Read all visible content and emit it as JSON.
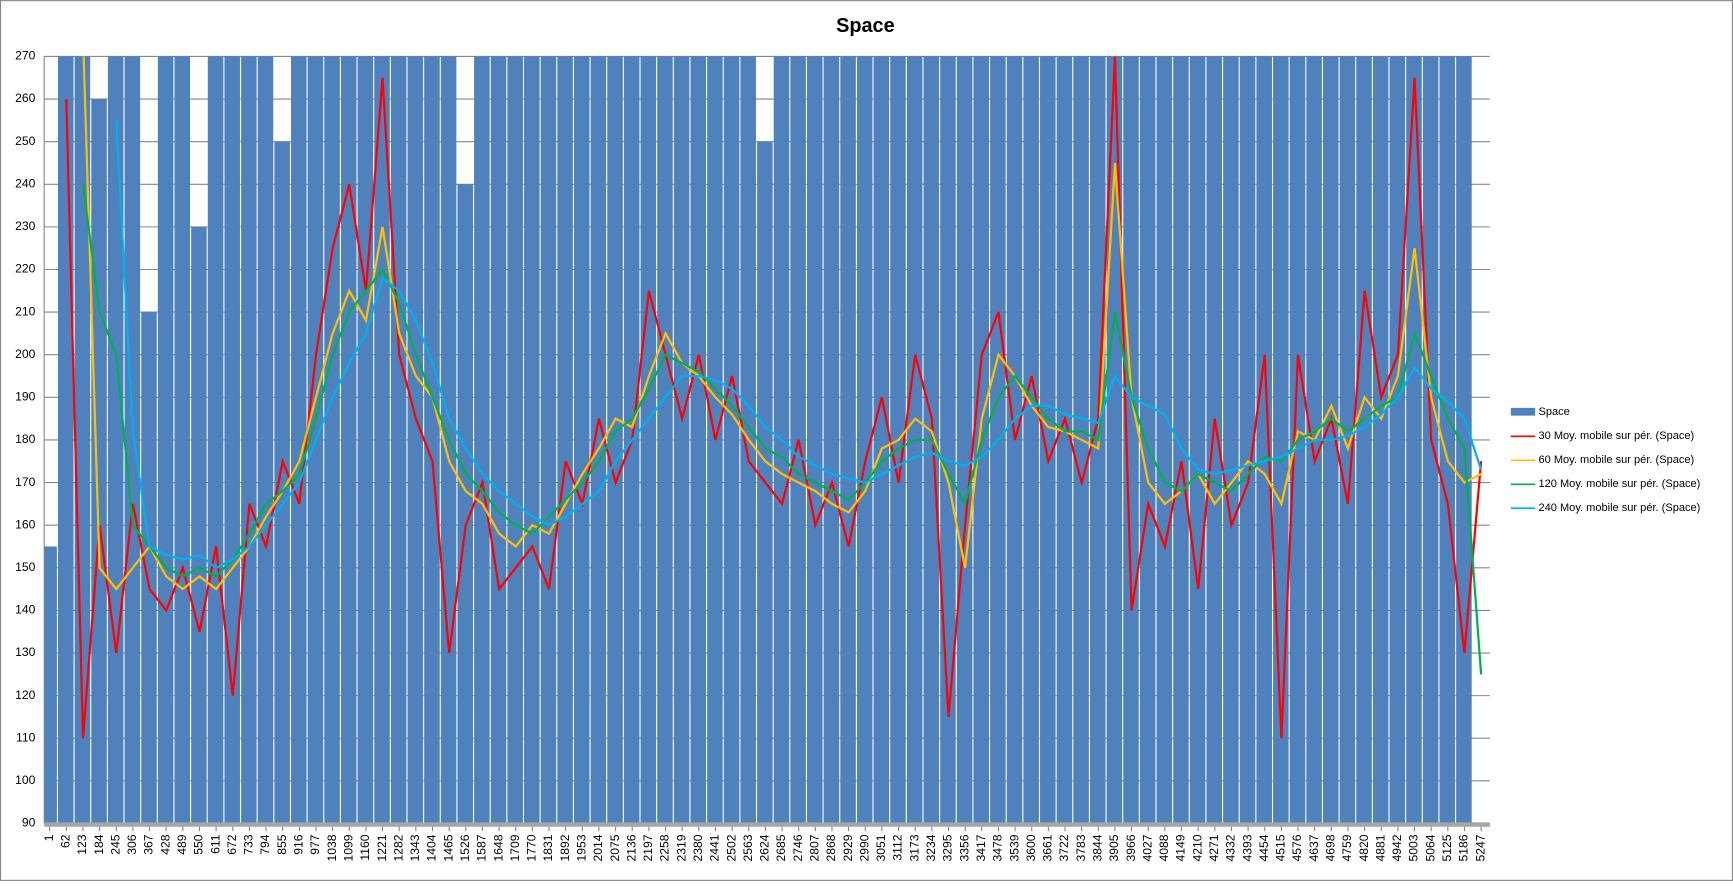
{
  "chart_data": {
    "type": "bar-line",
    "title": "Space",
    "x": [
      1,
      62,
      123,
      184,
      245,
      306,
      367,
      428,
      489,
      550,
      611,
      672,
      733,
      794,
      855,
      916,
      977,
      1038,
      1099,
      1160,
      1221,
      1282,
      1343,
      1404,
      1465,
      1526,
      1587,
      1648,
      1709,
      1770,
      1831,
      1892,
      1953,
      2014,
      2075,
      2136,
      2197,
      2258,
      2319,
      2380,
      2441,
      2502,
      2563,
      2624,
      2685,
      2746,
      2807,
      2868,
      2929,
      2990,
      3051,
      3112,
      3173,
      3234,
      3295,
      3356,
      3417,
      3478,
      3539,
      3600,
      3661,
      3722,
      3783,
      3844,
      3905,
      3966,
      4027,
      4088,
      4149,
      4210,
      4271,
      4332,
      4393,
      4454,
      4515,
      4576,
      4637,
      4698,
      4759,
      4820,
      4881,
      4942,
      5003,
      5064,
      5125,
      5186,
      5247
    ],
    "xlim": [
      -19,
      5279
    ],
    "xticks": [
      1,
      62,
      123,
      184,
      245,
      306,
      367,
      428,
      489,
      550,
      611,
      672,
      733,
      794,
      855,
      916,
      977,
      1038,
      1099,
      1160,
      1221,
      1282,
      1343,
      1404,
      1465,
      1526,
      1587,
      1648,
      1709,
      1770,
      1831,
      1892,
      1953,
      2014,
      2075,
      2136,
      2197,
      2258,
      2319,
      2380,
      2441,
      2502,
      2563,
      2624,
      2685,
      2746,
      2807,
      2868,
      2929,
      2990,
      3051,
      3112,
      3173,
      3234,
      3295,
      3356,
      3417,
      3478,
      3539,
      3600,
      3661,
      3722,
      3783,
      3844,
      3905,
      3966,
      4027,
      4088,
      4149,
      4210,
      4271,
      4332,
      4393,
      4454,
      4515,
      4576,
      4637,
      4698,
      4759,
      4820,
      4881,
      4942,
      5003,
      5064,
      5125,
      5186,
      5247
    ],
    "ylim": [
      90,
      270
    ],
    "yticks": [
      90,
      100,
      110,
      120,
      130,
      140,
      150,
      160,
      170,
      180,
      190,
      200,
      210,
      220,
      230,
      240,
      250,
      260,
      270
    ],
    "grid": true,
    "legend": "right",
    "series": [
      {
        "name": "Space",
        "type": "bar",
        "color": "#4f81bd",
        "values": [
          155,
          300,
          300,
          260,
          300,
          300,
          210,
          300,
          300,
          230,
          300,
          300,
          300,
          300,
          250,
          300,
          300,
          300,
          300,
          300,
          300,
          300,
          300,
          300,
          300,
          240,
          300,
          300,
          300,
          300,
          300,
          300,
          300,
          300,
          300,
          300,
          300,
          300,
          300,
          300,
          300,
          300,
          300,
          250,
          300,
          300,
          300,
          300,
          300,
          300,
          300,
          300,
          300,
          300,
          300,
          300,
          300,
          300,
          300,
          300,
          300,
          300,
          300,
          300,
          300,
          300,
          300,
          300,
          300,
          300,
          300,
          300,
          300,
          300,
          300,
          300,
          300,
          300,
          300,
          300,
          300,
          300,
          300,
          300,
          300,
          300,
          null
        ]
      },
      {
        "name": "30 Moy. mobile sur pér. (Space)",
        "type": "line",
        "color": "#ff0000",
        "values": [
          null,
          260,
          110,
          160,
          130,
          165,
          145,
          140,
          150,
          135,
          155,
          120,
          165,
          155,
          175,
          165,
          200,
          225,
          240,
          215,
          265,
          200,
          185,
          175,
          130,
          160,
          170,
          145,
          150,
          155,
          145,
          175,
          165,
          185,
          170,
          180,
          215,
          200,
          185,
          200,
          180,
          195,
          175,
          170,
          165,
          180,
          160,
          170,
          155,
          175,
          190,
          170,
          200,
          185,
          115,
          160,
          200,
          210,
          180,
          195,
          175,
          185,
          170,
          185,
          270,
          140,
          165,
          155,
          175,
          145,
          185,
          160,
          170,
          200,
          110,
          200,
          175,
          185,
          165,
          215,
          190,
          200,
          265,
          180,
          165,
          130,
          175
        ]
      },
      {
        "name": "60 Moy. mobile sur pér. (Space)",
        "type": "line",
        "color": "#ffc000",
        "values": [
          null,
          280,
          275,
          150,
          145,
          150,
          155,
          148,
          145,
          148,
          145,
          150,
          155,
          162,
          168,
          175,
          190,
          205,
          215,
          208,
          230,
          205,
          195,
          190,
          175,
          168,
          165,
          158,
          155,
          160,
          158,
          165,
          172,
          178,
          185,
          183,
          195,
          205,
          198,
          195,
          190,
          186,
          180,
          175,
          172,
          170,
          168,
          165,
          163,
          168,
          178,
          180,
          185,
          182,
          170,
          150,
          185,
          200,
          195,
          188,
          183,
          182,
          180,
          178,
          245,
          190,
          170,
          165,
          168,
          172,
          165,
          170,
          175,
          172,
          165,
          182,
          180,
          188,
          178,
          190,
          185,
          195,
          225,
          190,
          175,
          170,
          172
        ]
      },
      {
        "name": "120 Moy. mobile sur pér. (Space)",
        "type": "line",
        "color": "#00b050",
        "values": [
          null,
          null,
          240,
          210,
          200,
          160,
          155,
          150,
          148,
          150,
          148,
          152,
          158,
          165,
          168,
          172,
          185,
          200,
          210,
          215,
          220,
          212,
          200,
          190,
          180,
          172,
          168,
          163,
          160,
          158,
          162,
          166,
          170,
          175,
          182,
          185,
          192,
          200,
          198,
          196,
          192,
          188,
          183,
          178,
          176,
          172,
          170,
          168,
          166,
          170,
          175,
          178,
          180,
          180,
          172,
          165,
          180,
          190,
          195,
          190,
          185,
          182,
          182,
          180,
          210,
          190,
          178,
          170,
          168,
          172,
          170,
          168,
          172,
          176,
          175,
          180,
          182,
          185,
          182,
          185,
          188,
          190,
          205,
          195,
          185,
          178,
          125
        ]
      },
      {
        "name": "240 Moy. mobile sur pér. (Space)",
        "type": "line",
        "color": "#00b0f0",
        "values": [
          null,
          null,
          null,
          null,
          255,
          182,
          155,
          153,
          152,
          153,
          150,
          152,
          155,
          160,
          165,
          170,
          180,
          190,
          198,
          205,
          218,
          215,
          208,
          198,
          185,
          178,
          172,
          168,
          165,
          162,
          160,
          162,
          165,
          168,
          175,
          180,
          185,
          190,
          195,
          195,
          194,
          192,
          188,
          183,
          180,
          176,
          174,
          172,
          171,
          170,
          172,
          174,
          176,
          177,
          175,
          174,
          176,
          180,
          185,
          188,
          188,
          186,
          185,
          184,
          195,
          190,
          188,
          186,
          178,
          173,
          172,
          173,
          174,
          175,
          176,
          178,
          180,
          180,
          181,
          183,
          186,
          190,
          197,
          192,
          189,
          185,
          173
        ]
      }
    ]
  }
}
